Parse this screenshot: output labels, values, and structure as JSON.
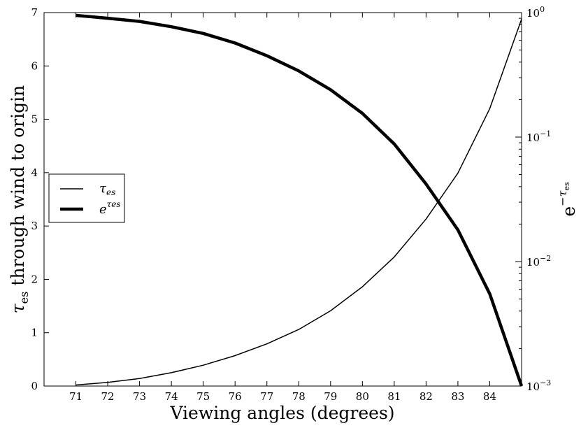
{
  "chart_data": {
    "type": "line",
    "xlabel": "Viewing angles (degrees)",
    "ylabel_left": {
      "symbol": "τ",
      "sub": "es",
      "rest": " through wind to origin"
    },
    "ylabel_right": {
      "base": "e",
      "sup": "−τ",
      "sub": "es"
    },
    "x_ticks": [
      "71",
      "72",
      "73",
      "74",
      "75",
      "76",
      "77",
      "78",
      "79",
      "80",
      "81",
      "82",
      "83",
      "84"
    ],
    "xlim": [
      70,
      85
    ],
    "left_axis": {
      "ylim": [
        0,
        7
      ],
      "ticks": [
        "0",
        "1",
        "2",
        "3",
        "4",
        "5",
        "6",
        "7"
      ]
    },
    "right_axis": {
      "scale": "log",
      "ylim": [
        0.001,
        1
      ],
      "ticks": [
        {
          "base": "10",
          "exp": "−3"
        },
        {
          "base": "10",
          "exp": "−2"
        },
        {
          "base": "10",
          "exp": "−1"
        },
        {
          "base": "10",
          "exp": "0"
        }
      ]
    },
    "legend": {
      "position": "center-left"
    },
    "series": [
      {
        "name": "τes",
        "legend_base": "τ",
        "legend_sub": "es",
        "axis": "left",
        "line_width": "thin",
        "color": "#000000",
        "x": [
          71,
          72,
          73,
          74,
          75,
          76,
          77,
          78,
          79,
          80,
          81,
          82,
          83,
          84,
          85
        ],
        "values": [
          0.02,
          0.07,
          0.14,
          0.25,
          0.39,
          0.57,
          0.79,
          1.06,
          1.41,
          1.86,
          2.42,
          3.13,
          3.99,
          5.2,
          6.88
        ]
      },
      {
        "name": "eτes",
        "legend_base": "e",
        "legend_sup": "τes",
        "axis": "right",
        "line_width": "thick",
        "color": "#000000",
        "x": [
          71,
          72,
          73,
          74,
          75,
          76,
          77,
          78,
          79,
          80,
          81,
          82,
          83,
          84,
          85
        ],
        "values": [
          0.95,
          0.9,
          0.85,
          0.77,
          0.68,
          0.57,
          0.45,
          0.34,
          0.24,
          0.155,
          0.088,
          0.042,
          0.018,
          0.0055,
          0.001
        ]
      }
    ]
  }
}
